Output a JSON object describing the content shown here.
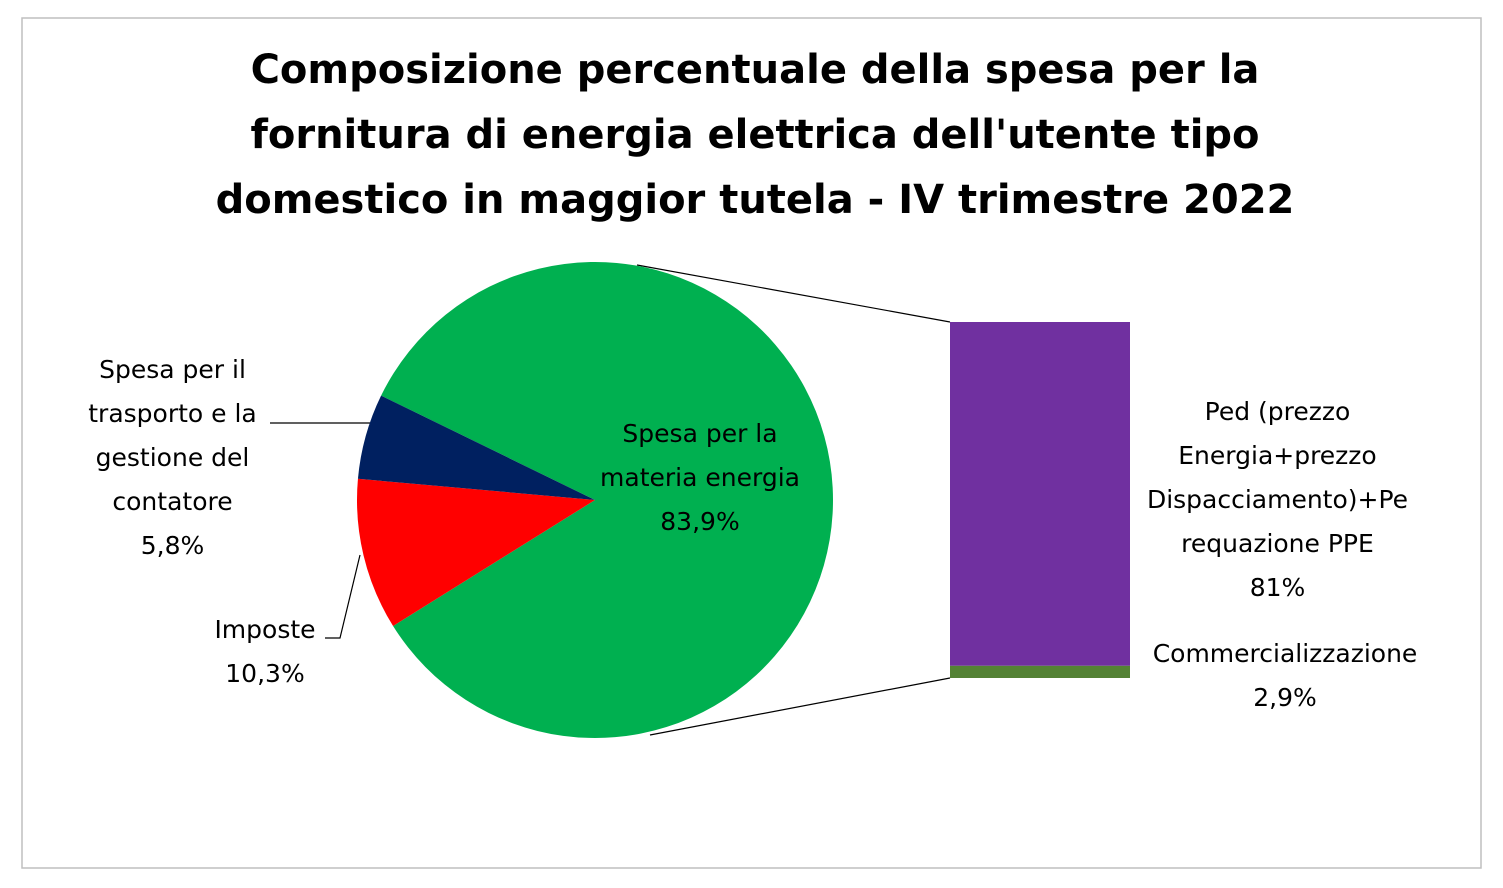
{
  "chart_data": {
    "type": "pie-of-bar",
    "title": "Composizione percentuale della spesa per la fornitura di energia elettrica dell'utente tipo domestico in maggior tutela - IV trimestre 2022",
    "categories": [
      "Spesa per la materia energia",
      "Imposte",
      "Spesa per il trasporto e la gestione del contatore"
    ],
    "values": [
      83.9,
      10.3,
      5.8
    ],
    "value_labels": [
      "83,9%",
      "10,3%",
      "5,8%"
    ],
    "colors": [
      "#00b050",
      "#ff0000",
      "#002060"
    ],
    "bar": {
      "categories": [
        "Ped (prezzo Energia+prezzo Dispacciamento)+Perequazione PPE",
        "Commercializzazione"
      ],
      "values": [
        81,
        2.9
      ],
      "value_labels": [
        "81%",
        "2,9%"
      ],
      "colors": [
        "#7030a0",
        "#548235"
      ]
    }
  }
}
